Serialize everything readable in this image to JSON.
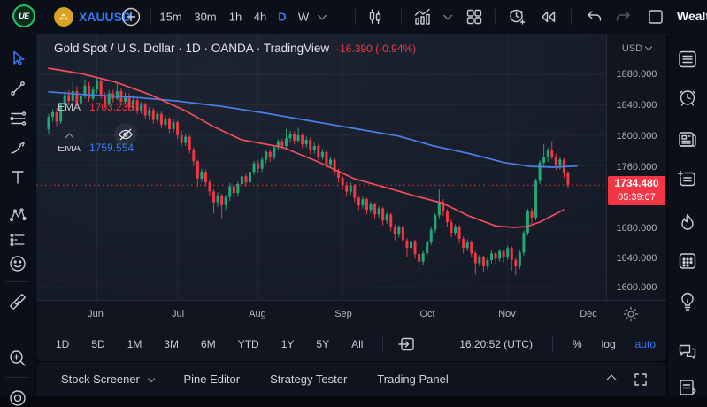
{
  "app": {
    "brand": "UE",
    "wealth_label": "Wealt"
  },
  "topbar": {
    "symbol": "XAUUSD",
    "timeframes": [
      "15m",
      "30m",
      "1h",
      "4h",
      "D",
      "W"
    ],
    "active_timeframe": "D"
  },
  "chart": {
    "title": "Gold Spot / U.S. Dollar · 1D · OANDA · TradingView",
    "change": "-16.390 (-0.94%)",
    "legend": [
      {
        "label": "EMA",
        "value": "1703.238"
      },
      {
        "label": "EMA",
        "value": "1759.554"
      }
    ],
    "price_axis": {
      "currency": "USD",
      "ticks": [
        "1880.000",
        "1840.000",
        "1800.000",
        "1760.000",
        "1680.000",
        "1640.000",
        "1600.000"
      ],
      "last_price": "1734.480",
      "countdown": "05:39:07"
    },
    "months": [
      "Jun",
      "Jul",
      "Aug",
      "Sep",
      "Oct",
      "Nov",
      "Dec"
    ]
  },
  "bottom_toolbar": {
    "ranges": [
      "1D",
      "5D",
      "1M",
      "3M",
      "6M",
      "YTD",
      "1Y",
      "5Y",
      "All"
    ],
    "clock": "16:20:52 (UTC)",
    "scales": [
      "%",
      "log",
      "auto"
    ],
    "active_scale": "auto"
  },
  "bottom_panel": {
    "items": [
      "Stock Screener",
      "Pine Editor",
      "Strategy Tester",
      "Trading Panel"
    ]
  },
  "colors": {
    "accent_blue": "#3179f5",
    "up_green": "#22a776",
    "down_red": "#f23645",
    "ema_fast_red": "#ef4e5e",
    "ema_slow_blue": "#4a7fe8",
    "badge_red": "#f23645"
  },
  "chart_data": {
    "type": "candlestick",
    "symbol": "XAUUSD",
    "title": "Gold Spot / U.S. Dollar",
    "timeframe": "1D",
    "provider": "OANDA",
    "currency": "USD",
    "ylim": [
      1580,
      1905
    ],
    "y_gridlines": [
      1600,
      1640,
      1680,
      1720,
      1760,
      1800,
      1840,
      1880
    ],
    "month_labels": [
      "Jun",
      "Jul",
      "Aug",
      "Sep",
      "Oct",
      "Nov",
      "Dec"
    ],
    "month_candle_indices": [
      12,
      32,
      52,
      73,
      94,
      114,
      134
    ],
    "last_price": 1734.48,
    "countdown": "05:39:07",
    "change": -16.39,
    "change_pct": -0.94,
    "ema_values": {
      "red": 1703.238,
      "blue": 1759.554
    },
    "candles_ohlc": [
      [
        1808,
        1828,
        1802,
        1824
      ],
      [
        1824,
        1834,
        1818,
        1830
      ],
      [
        1830,
        1836,
        1812,
        1818
      ],
      [
        1818,
        1843,
        1815,
        1840
      ],
      [
        1840,
        1858,
        1836,
        1853
      ],
      [
        1853,
        1859,
        1840,
        1845
      ],
      [
        1845,
        1870,
        1842,
        1858
      ],
      [
        1858,
        1864,
        1838,
        1842
      ],
      [
        1842,
        1856,
        1838,
        1852
      ],
      [
        1852,
        1873,
        1848,
        1865
      ],
      [
        1865,
        1870,
        1844,
        1848
      ],
      [
        1848,
        1864,
        1845,
        1860
      ],
      [
        1860,
        1875,
        1855,
        1871
      ],
      [
        1871,
        1874,
        1848,
        1852
      ],
      [
        1852,
        1856,
        1836,
        1841
      ],
      [
        1841,
        1859,
        1838,
        1855
      ],
      [
        1855,
        1860,
        1843,
        1848
      ],
      [
        1848,
        1870,
        1846,
        1858
      ],
      [
        1858,
        1862,
        1840,
        1844
      ],
      [
        1844,
        1856,
        1840,
        1852
      ],
      [
        1852,
        1855,
        1832,
        1837
      ],
      [
        1837,
        1850,
        1833,
        1846
      ],
      [
        1846,
        1849,
        1828,
        1832
      ],
      [
        1832,
        1844,
        1828,
        1840
      ],
      [
        1840,
        1843,
        1821,
        1826
      ],
      [
        1826,
        1837,
        1820,
        1833
      ],
      [
        1833,
        1836,
        1815,
        1820
      ],
      [
        1820,
        1831,
        1816,
        1828
      ],
      [
        1828,
        1831,
        1809,
        1814
      ],
      [
        1814,
        1826,
        1810,
        1822
      ],
      [
        1822,
        1824,
        1803,
        1808
      ],
      [
        1808,
        1821,
        1804,
        1817
      ],
      [
        1817,
        1819,
        1795,
        1800
      ],
      [
        1800,
        1806,
        1785,
        1790
      ],
      [
        1790,
        1801,
        1786,
        1798
      ],
      [
        1798,
        1800,
        1776,
        1781
      ],
      [
        1781,
        1784,
        1760,
        1766
      ],
      [
        1766,
        1768,
        1732,
        1743
      ],
      [
        1743,
        1756,
        1738,
        1752
      ],
      [
        1752,
        1755,
        1733,
        1738
      ],
      [
        1738,
        1742,
        1720,
        1726
      ],
      [
        1726,
        1729,
        1697,
        1712
      ],
      [
        1712,
        1725,
        1706,
        1721
      ],
      [
        1721,
        1723,
        1690,
        1708
      ],
      [
        1708,
        1722,
        1702,
        1719
      ],
      [
        1719,
        1737,
        1714,
        1733
      ],
      [
        1733,
        1736,
        1718,
        1724
      ],
      [
        1724,
        1739,
        1720,
        1736
      ],
      [
        1736,
        1750,
        1731,
        1746
      ],
      [
        1746,
        1749,
        1733,
        1738
      ],
      [
        1738,
        1755,
        1734,
        1752
      ],
      [
        1752,
        1766,
        1748,
        1763
      ],
      [
        1763,
        1767,
        1750,
        1756
      ],
      [
        1756,
        1771,
        1752,
        1768
      ],
      [
        1768,
        1781,
        1763,
        1778
      ],
      [
        1778,
        1781,
        1765,
        1771
      ],
      [
        1771,
        1787,
        1768,
        1784
      ],
      [
        1784,
        1795,
        1780,
        1792
      ],
      [
        1792,
        1795,
        1780,
        1786
      ],
      [
        1786,
        1808,
        1783,
        1796
      ],
      [
        1796,
        1806,
        1790,
        1802
      ],
      [
        1802,
        1805,
        1788,
        1793
      ],
      [
        1793,
        1810,
        1790,
        1800
      ],
      [
        1800,
        1803,
        1783,
        1788
      ],
      [
        1788,
        1798,
        1784,
        1794
      ],
      [
        1794,
        1797,
        1775,
        1780
      ],
      [
        1780,
        1790,
        1776,
        1786
      ],
      [
        1786,
        1789,
        1767,
        1772
      ],
      [
        1772,
        1782,
        1768,
        1778
      ],
      [
        1778,
        1780,
        1757,
        1762
      ],
      [
        1762,
        1772,
        1758,
        1768
      ],
      [
        1768,
        1770,
        1747,
        1752
      ],
      [
        1752,
        1756,
        1738,
        1744
      ],
      [
        1744,
        1747,
        1728,
        1734
      ],
      [
        1734,
        1738,
        1720,
        1726
      ],
      [
        1726,
        1738,
        1722,
        1734
      ],
      [
        1734,
        1736,
        1712,
        1718
      ],
      [
        1718,
        1721,
        1702,
        1708
      ],
      [
        1708,
        1719,
        1704,
        1716
      ],
      [
        1716,
        1718,
        1696,
        1702
      ],
      [
        1702,
        1713,
        1698,
        1710
      ],
      [
        1710,
        1712,
        1690,
        1696
      ],
      [
        1696,
        1707,
        1692,
        1704
      ],
      [
        1704,
        1706,
        1682,
        1688
      ],
      [
        1688,
        1699,
        1684,
        1696
      ],
      [
        1696,
        1698,
        1674,
        1680
      ],
      [
        1680,
        1683,
        1662,
        1670
      ],
      [
        1670,
        1682,
        1666,
        1679
      ],
      [
        1679,
        1681,
        1656,
        1662
      ],
      [
        1662,
        1665,
        1640,
        1652
      ],
      [
        1652,
        1664,
        1647,
        1661
      ],
      [
        1661,
        1663,
        1638,
        1644
      ],
      [
        1644,
        1647,
        1622,
        1634
      ],
      [
        1634,
        1648,
        1630,
        1645
      ],
      [
        1645,
        1663,
        1641,
        1660
      ],
      [
        1660,
        1679,
        1656,
        1676
      ],
      [
        1676,
        1698,
        1672,
        1695
      ],
      [
        1695,
        1729,
        1691,
        1712
      ],
      [
        1712,
        1716,
        1694,
        1700
      ],
      [
        1700,
        1703,
        1680,
        1686
      ],
      [
        1686,
        1690,
        1666,
        1672
      ],
      [
        1672,
        1683,
        1668,
        1680
      ],
      [
        1680,
        1682,
        1658,
        1664
      ],
      [
        1664,
        1667,
        1645,
        1652
      ],
      [
        1652,
        1663,
        1648,
        1660
      ],
      [
        1660,
        1662,
        1639,
        1645
      ],
      [
        1645,
        1648,
        1617,
        1632
      ],
      [
        1632,
        1643,
        1628,
        1640
      ],
      [
        1640,
        1642,
        1621,
        1628
      ],
      [
        1628,
        1639,
        1624,
        1636
      ],
      [
        1636,
        1649,
        1632,
        1645
      ],
      [
        1645,
        1647,
        1631,
        1638
      ],
      [
        1638,
        1651,
        1634,
        1648
      ],
      [
        1648,
        1650,
        1633,
        1640
      ],
      [
        1640,
        1655,
        1636,
        1652
      ],
      [
        1652,
        1654,
        1622,
        1636
      ],
      [
        1636,
        1639,
        1616,
        1628
      ],
      [
        1628,
        1649,
        1624,
        1646
      ],
      [
        1646,
        1675,
        1642,
        1672
      ],
      [
        1672,
        1703,
        1668,
        1700
      ],
      [
        1700,
        1704,
        1684,
        1692
      ],
      [
        1692,
        1743,
        1688,
        1740
      ],
      [
        1740,
        1767,
        1736,
        1764
      ],
      [
        1764,
        1788,
        1759,
        1772
      ],
      [
        1772,
        1783,
        1765,
        1780
      ],
      [
        1780,
        1792,
        1768,
        1772
      ],
      [
        1772,
        1776,
        1754,
        1760
      ],
      [
        1760,
        1771,
        1755,
        1768
      ],
      [
        1768,
        1770,
        1744,
        1750
      ],
      [
        1750,
        1753,
        1730,
        1734.5
      ]
    ],
    "ema_red_points": [
      [
        0,
        1888
      ],
      [
        8,
        1881
      ],
      [
        16.5,
        1870
      ],
      [
        25.3,
        1853
      ],
      [
        34,
        1832
      ],
      [
        40.7,
        1812
      ],
      [
        47.9,
        1794
      ],
      [
        58.2,
        1784
      ],
      [
        67,
        1765
      ],
      [
        75.8,
        1743
      ],
      [
        84.6,
        1730
      ],
      [
        91.2,
        1720
      ],
      [
        97.8,
        1711
      ],
      [
        104.4,
        1694
      ],
      [
        111,
        1681
      ],
      [
        115.4,
        1679
      ],
      [
        118.7,
        1680
      ],
      [
        122,
        1686
      ],
      [
        125.3,
        1695
      ],
      [
        127.9,
        1702
      ]
    ],
    "ema_blue_points": [
      [
        0,
        1857
      ],
      [
        9.9,
        1853
      ],
      [
        20.9,
        1850
      ],
      [
        31.9,
        1845
      ],
      [
        42.9,
        1838
      ],
      [
        53.8,
        1829
      ],
      [
        64.8,
        1819
      ],
      [
        75.8,
        1809
      ],
      [
        86.8,
        1799
      ],
      [
        95.6,
        1786
      ],
      [
        104.4,
        1776
      ],
      [
        113.2,
        1764
      ],
      [
        119.8,
        1759
      ],
      [
        125.3,
        1758
      ],
      [
        131.2,
        1759.5
      ]
    ]
  }
}
